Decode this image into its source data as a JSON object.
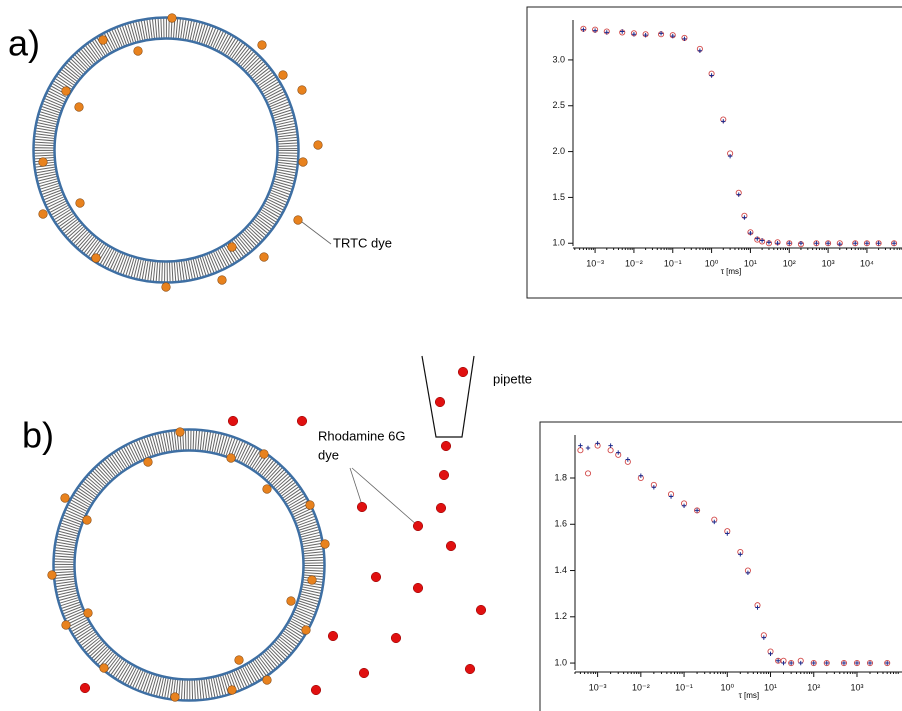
{
  "labels": {
    "panel_a": "a)",
    "panel_b": "b)",
    "trtc": "TRTC dye",
    "pipette": "pipette",
    "rhodamine": [
      "Rhodamine 6G",
      "dye"
    ]
  },
  "chart_data": [
    {
      "type": "scatter",
      "xlabel": "τ [ms]",
      "xscale": "log",
      "x": [
        0.0005,
        0.001,
        0.002,
        0.005,
        0.01,
        0.02,
        0.05,
        0.1,
        0.2,
        0.5,
        1,
        2,
        3,
        5,
        7,
        10,
        15,
        20,
        30,
        50,
        100,
        200,
        500,
        1000,
        2000,
        5000,
        10000,
        20000,
        50000
      ],
      "series": [
        {
          "marker": "circle",
          "color": "#d24a4a",
          "values": [
            3.34,
            3.33,
            3.31,
            3.3,
            3.29,
            3.28,
            3.28,
            3.27,
            3.24,
            3.12,
            2.85,
            2.35,
            1.98,
            1.55,
            1.3,
            1.12,
            1.04,
            1.02,
            1.0,
            1.01,
            1.0,
            0.99,
            1.0,
            1.0,
            1.0,
            1.0,
            1.0,
            1.0,
            1.0
          ]
        },
        {
          "marker": "plus",
          "color": "#1c2a8c",
          "values": [
            3.33,
            3.32,
            3.3,
            3.31,
            3.28,
            3.27,
            3.29,
            3.26,
            3.23,
            3.1,
            2.83,
            2.33,
            1.95,
            1.53,
            1.28,
            1.11,
            1.05,
            1.03,
            1.01,
            1.0,
            1.0,
            1.0,
            1.0,
            1.0,
            0.99,
            1.0,
            1.0,
            1.0,
            1.0
          ]
        }
      ],
      "xlim": [
        0.00027,
        80000
      ],
      "ylim": [
        0.97,
        3.37
      ],
      "xticks": [
        {
          "value": 0.001,
          "label": "10⁻³"
        },
        {
          "value": 0.01,
          "label": "10⁻²"
        },
        {
          "value": 0.1,
          "label": "10⁻¹"
        },
        {
          "value": 1,
          "label": "10⁰"
        },
        {
          "value": 10,
          "label": "10¹"
        },
        {
          "value": 100,
          "label": "10²"
        },
        {
          "value": 1000,
          "label": "10³"
        },
        {
          "value": 10000,
          "label": "10⁴"
        }
      ],
      "yticks": [
        {
          "value": 1,
          "label": "1.0"
        },
        {
          "value": 1.5,
          "label": "1.5"
        },
        {
          "value": 2,
          "label": "2.0"
        },
        {
          "value": 2.5,
          "label": "2.5"
        },
        {
          "value": 3,
          "label": "3.0"
        }
      ]
    },
    {
      "type": "scatter",
      "xlabel": "τ [ms]",
      "xscale": "log",
      "x": [
        0.0004,
        0.0006,
        0.001,
        0.002,
        0.003,
        0.005,
        0.01,
        0.02,
        0.05,
        0.1,
        0.2,
        0.5,
        1,
        2,
        3,
        5,
        7,
        10,
        15,
        20,
        30,
        50,
        100,
        200,
        500,
        1000,
        2000,
        5000
      ],
      "series": [
        {
          "marker": "circle",
          "color": "#d24a4a",
          "values": [
            1.92,
            1.82,
            1.94,
            1.92,
            1.9,
            1.87,
            1.8,
            1.77,
            1.73,
            1.69,
            1.66,
            1.62,
            1.57,
            1.48,
            1.4,
            1.25,
            1.12,
            1.05,
            1.01,
            1.01,
            1.0,
            1.01,
            1.0,
            1.0,
            1.0,
            1.0,
            1.0,
            1.0
          ]
        },
        {
          "marker": "plus",
          "color": "#1c2a8c",
          "values": [
            1.94,
            1.93,
            1.95,
            1.94,
            1.91,
            1.88,
            1.81,
            1.76,
            1.72,
            1.68,
            1.66,
            1.61,
            1.56,
            1.47,
            1.39,
            1.24,
            1.11,
            1.04,
            1.01,
            1.0,
            1.0,
            1.0,
            1.0,
            1.0,
            1.0,
            1.0,
            1.0,
            1.0
          ]
        }
      ],
      "xlim": [
        0.0003,
        11000
      ],
      "ylim": [
        0.97,
        1.96
      ],
      "xticks": [
        {
          "value": 0.001,
          "label": "10⁻³"
        },
        {
          "value": 0.01,
          "label": "10⁻²"
        },
        {
          "value": 0.1,
          "label": "10⁻¹"
        },
        {
          "value": 1,
          "label": "10⁰"
        },
        {
          "value": 10,
          "label": "10¹"
        },
        {
          "value": 100,
          "label": "10²"
        },
        {
          "value": 1000,
          "label": "10³"
        }
      ],
      "yticks": [
        {
          "value": 1,
          "label": "1.0"
        },
        {
          "value": 1.2,
          "label": "1.2"
        },
        {
          "value": 1.4,
          "label": "1.4"
        },
        {
          "value": 1.6,
          "label": "1.6"
        },
        {
          "value": 1.8,
          "label": "1.8"
        }
      ]
    }
  ]
}
